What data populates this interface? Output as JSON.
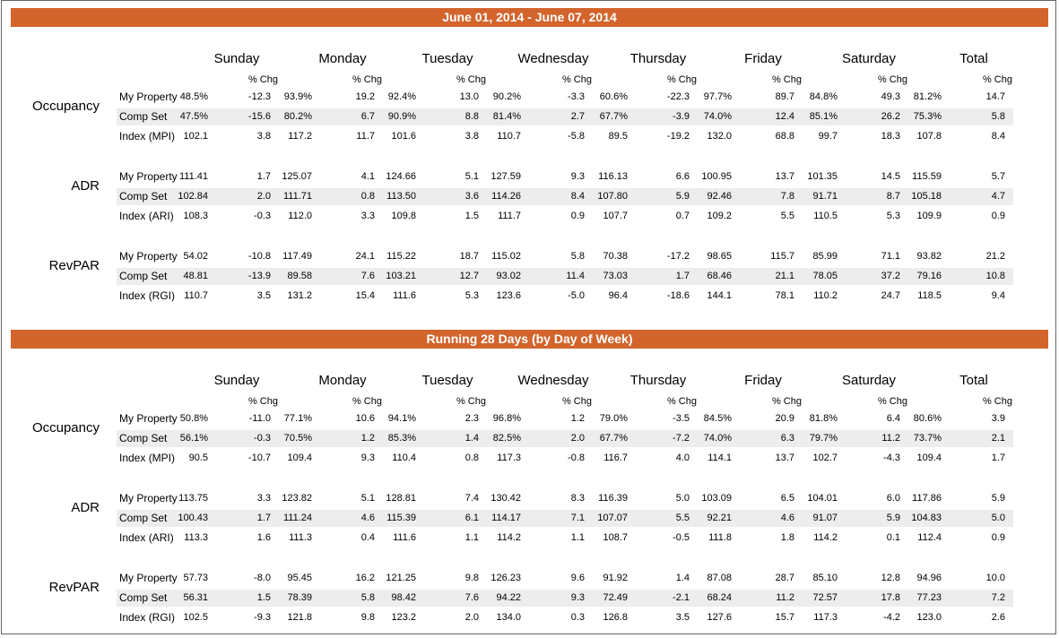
{
  "sections": [
    {
      "title": "June 01, 2014 - June 07, 2014",
      "days": [
        "Sunday",
        "Monday",
        "Tuesday",
        "Wednesday",
        "Thursday",
        "Friday",
        "Saturday",
        "Total"
      ],
      "chg_label": "% Chg",
      "groups": [
        {
          "label": "Occupancy",
          "rows": [
            {
              "label": "My Property",
              "values": [
                [
                  "48.5%",
                  "-12.3"
                ],
                [
                  "93.9%",
                  "19.2"
                ],
                [
                  "92.4%",
                  "13.0"
                ],
                [
                  "90.2%",
                  "-3.3"
                ],
                [
                  "60.6%",
                  "-22.3"
                ],
                [
                  "97.7%",
                  "89.7"
                ],
                [
                  "84.8%",
                  "49.3"
                ],
                [
                  "81.2%",
                  "14.7"
                ]
              ]
            },
            {
              "label": "Comp Set",
              "values": [
                [
                  "47.5%",
                  "-15.6"
                ],
                [
                  "80.2%",
                  "6.7"
                ],
                [
                  "90.9%",
                  "8.8"
                ],
                [
                  "81.4%",
                  "2.7"
                ],
                [
                  "67.7%",
                  "-3.9"
                ],
                [
                  "74.0%",
                  "12.4"
                ],
                [
                  "85.1%",
                  "26.2"
                ],
                [
                  "75.3%",
                  "5.8"
                ]
              ]
            },
            {
              "label": "Index (MPI)",
              "values": [
                [
                  "102.1",
                  "3.8"
                ],
                [
                  "117.2",
                  "11.7"
                ],
                [
                  "101.6",
                  "3.8"
                ],
                [
                  "110.7",
                  "-5.8"
                ],
                [
                  "89.5",
                  "-19.2"
                ],
                [
                  "132.0",
                  "68.8"
                ],
                [
                  "99.7",
                  "18.3"
                ],
                [
                  "107.8",
                  "8.4"
                ]
              ]
            }
          ]
        },
        {
          "label": "ADR",
          "rows": [
            {
              "label": "My Property",
              "values": [
                [
                  "111.41",
                  "1.7"
                ],
                [
                  "125.07",
                  "4.1"
                ],
                [
                  "124.66",
                  "5.1"
                ],
                [
                  "127.59",
                  "9.3"
                ],
                [
                  "116.13",
                  "6.6"
                ],
                [
                  "100.95",
                  "13.7"
                ],
                [
                  "101.35",
                  "14.5"
                ],
                [
                  "115.59",
                  "5.7"
                ]
              ]
            },
            {
              "label": "Comp Set",
              "values": [
                [
                  "102.84",
                  "2.0"
                ],
                [
                  "111.71",
                  "0.8"
                ],
                [
                  "113.50",
                  "3.6"
                ],
                [
                  "114.26",
                  "8.4"
                ],
                [
                  "107.80",
                  "5.9"
                ],
                [
                  "92.46",
                  "7.8"
                ],
                [
                  "91.71",
                  "8.7"
                ],
                [
                  "105.18",
                  "4.7"
                ]
              ]
            },
            {
              "label": "Index (ARI)",
              "values": [
                [
                  "108.3",
                  "-0.3"
                ],
                [
                  "112.0",
                  "3.3"
                ],
                [
                  "109.8",
                  "1.5"
                ],
                [
                  "111.7",
                  "0.9"
                ],
                [
                  "107.7",
                  "0.7"
                ],
                [
                  "109.2",
                  "5.5"
                ],
                [
                  "110.5",
                  "5.3"
                ],
                [
                  "109.9",
                  "0.9"
                ]
              ]
            }
          ]
        },
        {
          "label": "RevPAR",
          "rows": [
            {
              "label": "My Property",
              "values": [
                [
                  "54.02",
                  "-10.8"
                ],
                [
                  "117.49",
                  "24.1"
                ],
                [
                  "115.22",
                  "18.7"
                ],
                [
                  "115.02",
                  "5.8"
                ],
                [
                  "70.38",
                  "-17.2"
                ],
                [
                  "98.65",
                  "115.7"
                ],
                [
                  "85.99",
                  "71.1"
                ],
                [
                  "93.82",
                  "21.2"
                ]
              ]
            },
            {
              "label": "Comp Set",
              "values": [
                [
                  "48.81",
                  "-13.9"
                ],
                [
                  "89.58",
                  "7.6"
                ],
                [
                  "103.21",
                  "12.7"
                ],
                [
                  "93.02",
                  "11.4"
                ],
                [
                  "73.03",
                  "1.7"
                ],
                [
                  "68.46",
                  "21.1"
                ],
                [
                  "78.05",
                  "37.2"
                ],
                [
                  "79.16",
                  "10.8"
                ]
              ]
            },
            {
              "label": "Index (RGI)",
              "values": [
                [
                  "110.7",
                  "3.5"
                ],
                [
                  "131.2",
                  "15.4"
                ],
                [
                  "111.6",
                  "5.3"
                ],
                [
                  "123.6",
                  "-5.0"
                ],
                [
                  "96.4",
                  "-18.6"
                ],
                [
                  "144.1",
                  "78.1"
                ],
                [
                  "110.2",
                  "24.7"
                ],
                [
                  "118.5",
                  "9.4"
                ]
              ]
            }
          ]
        }
      ]
    },
    {
      "title": "Running 28 Days (by Day of Week)",
      "days": [
        "Sunday",
        "Monday",
        "Tuesday",
        "Wednesday",
        "Thursday",
        "Friday",
        "Saturday",
        "Total"
      ],
      "chg_label": "% Chg",
      "groups": [
        {
          "label": "Occupancy",
          "rows": [
            {
              "label": "My Property",
              "values": [
                [
                  "50.8%",
                  "-11.0"
                ],
                [
                  "77.1%",
                  "10.6"
                ],
                [
                  "94.1%",
                  "2.3"
                ],
                [
                  "96.8%",
                  "1.2"
                ],
                [
                  "79.0%",
                  "-3.5"
                ],
                [
                  "84.5%",
                  "20.9"
                ],
                [
                  "81.8%",
                  "6.4"
                ],
                [
                  "80.6%",
                  "3.9"
                ]
              ]
            },
            {
              "label": "Comp Set",
              "values": [
                [
                  "56.1%",
                  "-0.3"
                ],
                [
                  "70.5%",
                  "1.2"
                ],
                [
                  "85.3%",
                  "1.4"
                ],
                [
                  "82.5%",
                  "2.0"
                ],
                [
                  "67.7%",
                  "-7.2"
                ],
                [
                  "74.0%",
                  "6.3"
                ],
                [
                  "79.7%",
                  "11.2"
                ],
                [
                  "73.7%",
                  "2.1"
                ]
              ]
            },
            {
              "label": "Index (MPI)",
              "values": [
                [
                  "90.5",
                  "-10.7"
                ],
                [
                  "109.4",
                  "9.3"
                ],
                [
                  "110.4",
                  "0.8"
                ],
                [
                  "117.3",
                  "-0.8"
                ],
                [
                  "116.7",
                  "4.0"
                ],
                [
                  "114.1",
                  "13.7"
                ],
                [
                  "102.7",
                  "-4.3"
                ],
                [
                  "109.4",
                  "1.7"
                ]
              ]
            }
          ]
        },
        {
          "label": "ADR",
          "rows": [
            {
              "label": "My Property",
              "values": [
                [
                  "113.75",
                  "3.3"
                ],
                [
                  "123.82",
                  "5.1"
                ],
                [
                  "128.81",
                  "7.4"
                ],
                [
                  "130.42",
                  "8.3"
                ],
                [
                  "116.39",
                  "5.0"
                ],
                [
                  "103.09",
                  "6.5"
                ],
                [
                  "104.01",
                  "6.0"
                ],
                [
                  "117.86",
                  "5.9"
                ]
              ]
            },
            {
              "label": "Comp Set",
              "values": [
                [
                  "100.43",
                  "1.7"
                ],
                [
                  "111.24",
                  "4.6"
                ],
                [
                  "115.39",
                  "6.1"
                ],
                [
                  "114.17",
                  "7.1"
                ],
                [
                  "107.07",
                  "5.5"
                ],
                [
                  "92.21",
                  "4.6"
                ],
                [
                  "91.07",
                  "5.9"
                ],
                [
                  "104.83",
                  "5.0"
                ]
              ]
            },
            {
              "label": "Index (ARI)",
              "values": [
                [
                  "113.3",
                  "1.6"
                ],
                [
                  "111.3",
                  "0.4"
                ],
                [
                  "111.6",
                  "1.1"
                ],
                [
                  "114.2",
                  "1.1"
                ],
                [
                  "108.7",
                  "-0.5"
                ],
                [
                  "111.8",
                  "1.8"
                ],
                [
                  "114.2",
                  "0.1"
                ],
                [
                  "112.4",
                  "0.9"
                ]
              ]
            }
          ]
        },
        {
          "label": "RevPAR",
          "rows": [
            {
              "label": "My Property",
              "values": [
                [
                  "57.73",
                  "-8.0"
                ],
                [
                  "95.45",
                  "16.2"
                ],
                [
                  "121.25",
                  "9.8"
                ],
                [
                  "126.23",
                  "9.6"
                ],
                [
                  "91.92",
                  "1.4"
                ],
                [
                  "87.08",
                  "28.7"
                ],
                [
                  "85.10",
                  "12.8"
                ],
                [
                  "94.96",
                  "10.0"
                ]
              ]
            },
            {
              "label": "Comp Set",
              "values": [
                [
                  "56.31",
                  "1.5"
                ],
                [
                  "78.39",
                  "5.8"
                ],
                [
                  "98.42",
                  "7.6"
                ],
                [
                  "94.22",
                  "9.3"
                ],
                [
                  "72.49",
                  "-2.1"
                ],
                [
                  "68.24",
                  "11.2"
                ],
                [
                  "72.57",
                  "17.8"
                ],
                [
                  "77.23",
                  "7.2"
                ]
              ]
            },
            {
              "label": "Index (RGI)",
              "values": [
                [
                  "102.5",
                  "-9.3"
                ],
                [
                  "121.8",
                  "9.8"
                ],
                [
                  "123.2",
                  "2.0"
                ],
                [
                  "134.0",
                  "0.3"
                ],
                [
                  "126.8",
                  "3.5"
                ],
                [
                  "127.6",
                  "15.7"
                ],
                [
                  "117.3",
                  "-4.2"
                ],
                [
                  "123.0",
                  "2.6"
                ]
              ]
            }
          ]
        }
      ]
    }
  ],
  "colors": {
    "banner": "#D2642C",
    "row_shade": "#EDEDED",
    "border": "#666666"
  }
}
